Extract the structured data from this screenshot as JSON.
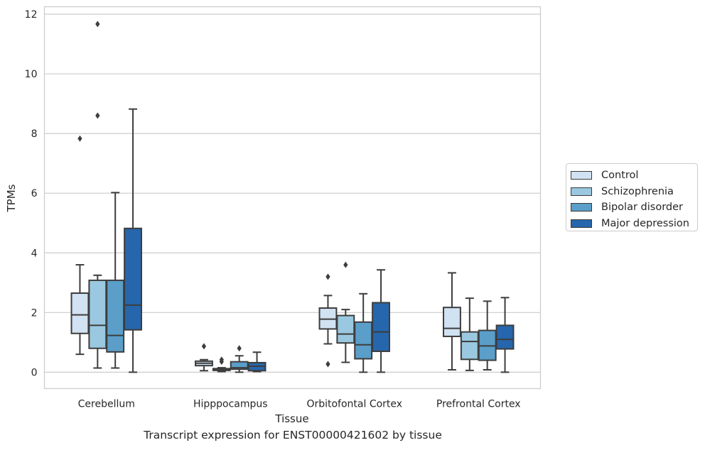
{
  "chart_data": {
    "type": "boxplot",
    "title": "",
    "caption": "Transcript expression for ENST00000421602 by tissue",
    "xlabel": "Tissue",
    "ylabel": "TPMs",
    "ylim": [
      -0.55,
      12.25
    ],
    "yticks": [
      0,
      2,
      4,
      6,
      8,
      10,
      12
    ],
    "grid": true,
    "legend_position": "right",
    "categories": [
      "Cerebellum",
      "Hipppocampus",
      "Orbitofontal Cortex",
      "Prefrontal Cortex"
    ],
    "series": [
      {
        "name": "Control",
        "color": "#d1e2f2",
        "boxes": [
          {
            "whisker_low": 0.6,
            "q1": 1.3,
            "median": 1.92,
            "q3": 2.65,
            "whisker_high": 3.6,
            "outliers": [
              7.83
            ]
          },
          {
            "whisker_low": 0.05,
            "q1": 0.22,
            "median": 0.3,
            "q3": 0.37,
            "whisker_high": 0.42,
            "outliers": [
              0.87
            ]
          },
          {
            "whisker_low": 0.95,
            "q1": 1.45,
            "median": 1.78,
            "q3": 2.15,
            "whisker_high": 2.57,
            "outliers": [
              3.2,
              0.27
            ]
          },
          {
            "whisker_low": 0.08,
            "q1": 1.2,
            "median": 1.47,
            "q3": 2.17,
            "whisker_high": 3.33,
            "outliers": []
          }
        ]
      },
      {
        "name": "Schizophrenia",
        "color": "#9ac8e0",
        "boxes": [
          {
            "whisker_low": 0.14,
            "q1": 0.8,
            "median": 1.57,
            "q3": 3.08,
            "whisker_high": 3.25,
            "outliers": [
              11.67,
              8.6
            ]
          },
          {
            "whisker_low": 0.02,
            "q1": 0.06,
            "median": 0.09,
            "q3": 0.12,
            "whisker_high": 0.15,
            "outliers": [
              0.42,
              0.35
            ]
          },
          {
            "whisker_low": 0.33,
            "q1": 0.98,
            "median": 1.28,
            "q3": 1.9,
            "whisker_high": 2.1,
            "outliers": [
              3.6
            ]
          },
          {
            "whisker_low": 0.06,
            "q1": 0.43,
            "median": 1.03,
            "q3": 1.35,
            "whisker_high": 2.48,
            "outliers": []
          }
        ]
      },
      {
        "name": "Bipolar disorder",
        "color": "#5a9ec9",
        "boxes": [
          {
            "whisker_low": 0.14,
            "q1": 0.68,
            "median": 1.23,
            "q3": 3.08,
            "whisker_high": 6.02,
            "outliers": []
          },
          {
            "whisker_low": 0.0,
            "q1": 0.1,
            "median": 0.15,
            "q3": 0.35,
            "whisker_high": 0.55,
            "outliers": [
              0.8
            ]
          },
          {
            "whisker_low": 0.0,
            "q1": 0.45,
            "median": 0.92,
            "q3": 1.68,
            "whisker_high": 2.63,
            "outliers": []
          },
          {
            "whisker_low": 0.08,
            "q1": 0.4,
            "median": 0.88,
            "q3": 1.4,
            "whisker_high": 2.38,
            "outliers": []
          }
        ]
      },
      {
        "name": "Major depression",
        "color": "#2666ac",
        "boxes": [
          {
            "whisker_low": 0.0,
            "q1": 1.42,
            "median": 2.25,
            "q3": 4.82,
            "whisker_high": 8.82,
            "outliers": []
          },
          {
            "whisker_low": 0.02,
            "q1": 0.05,
            "median": 0.2,
            "q3": 0.32,
            "whisker_high": 0.67,
            "outliers": []
          },
          {
            "whisker_low": 0.0,
            "q1": 0.7,
            "median": 1.35,
            "q3": 2.33,
            "whisker_high": 3.43,
            "outliers": []
          },
          {
            "whisker_low": 0.0,
            "q1": 0.78,
            "median": 1.1,
            "q3": 1.57,
            "whisker_high": 2.5,
            "outliers": []
          }
        ]
      }
    ]
  }
}
